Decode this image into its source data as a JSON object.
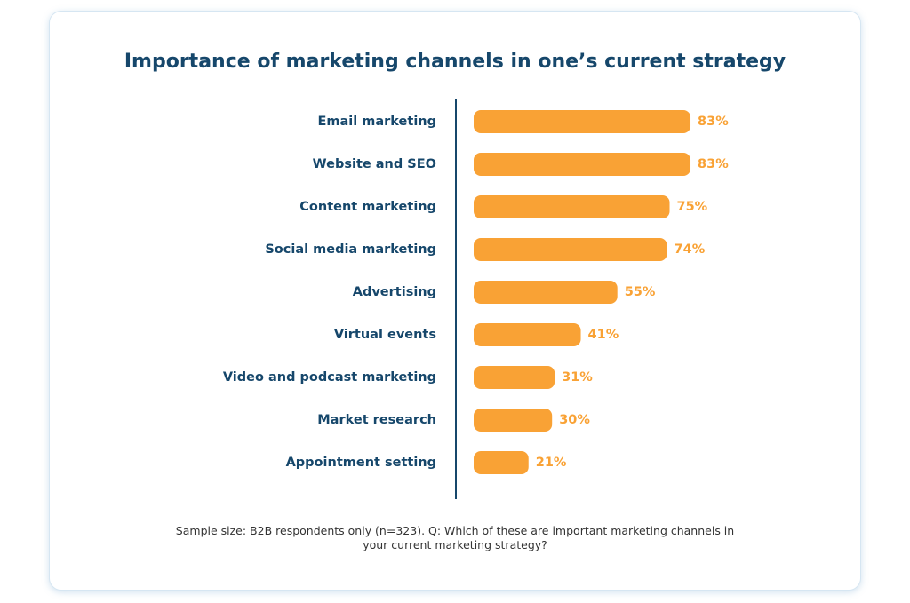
{
  "chart_data": {
    "type": "bar",
    "orientation": "horizontal",
    "title": "Importance of marketing channels in one’s current strategy",
    "categories": [
      "Email marketing",
      "Website and SEO",
      "Content marketing",
      "Social media marketing",
      "Advertising",
      "Virtual events",
      "Video and podcast marketing",
      "Market research",
      "Appointment setting"
    ],
    "values": [
      83,
      83,
      75,
      74,
      55,
      41,
      31,
      30,
      21
    ],
    "value_labels": [
      "83%",
      "83%",
      "75%",
      "74%",
      "55%",
      "41%",
      "31%",
      "30%",
      "21%"
    ],
    "color": "#f9a235",
    "note": "Sample size: B2B respondents only (n=323). Q: Which of these are important marketing channels in your current marketing strategy?"
  }
}
